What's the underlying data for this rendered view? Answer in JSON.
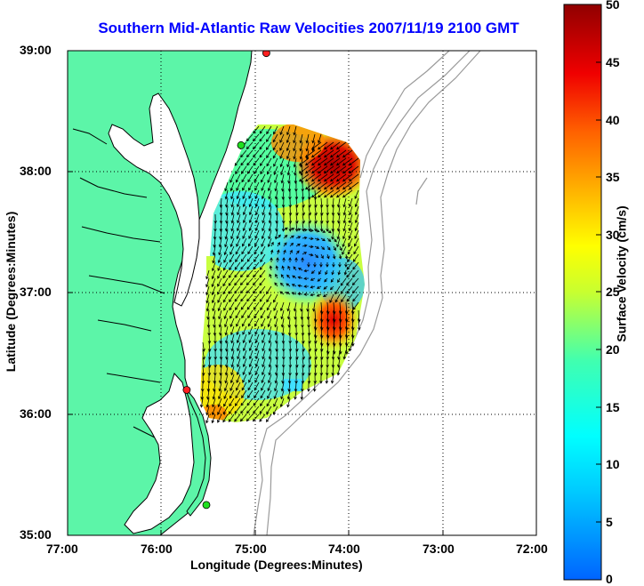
{
  "title": "Southern Mid-Atlantic Raw Velocities 2007/11/19 2100 GMT",
  "x_axis": {
    "label": "Longitude (Degrees:Minutes)",
    "ticks": [
      "77:00",
      "76:00",
      "75:00",
      "74:00",
      "73:00",
      "72:00"
    ]
  },
  "y_axis": {
    "label": "Latitude (Degrees:Minutes)",
    "ticks": [
      "39:00",
      "38:00",
      "37:00",
      "36:00",
      "35:00"
    ]
  },
  "colorbar": {
    "label": "Surface Velocity (cm/s)",
    "ticks": [
      "50",
      "45",
      "40",
      "35",
      "30",
      "25",
      "20",
      "15",
      "10",
      "5",
      "0"
    ],
    "range": [
      0,
      50
    ]
  },
  "colors": {
    "land": "#5cf5a8",
    "coast": "#000000",
    "bathymetry": "#9a9a9a",
    "title": "#0000ff",
    "station_red": "#ff2020",
    "station_green": "#20e020"
  },
  "map_extent": {
    "lon_west": -77.0,
    "lon_east": -72.0,
    "lat_south": 35.0,
    "lat_north": 39.0
  },
  "grid": true,
  "stations": [
    {
      "lon": -74.88,
      "lat": 38.98,
      "color": "red"
    },
    {
      "lon": -75.15,
      "lat": 38.22,
      "color": "green"
    },
    {
      "lon": -75.73,
      "lat": 36.2,
      "color": "red"
    },
    {
      "lon": -75.52,
      "lat": 35.25,
      "color": "green"
    }
  ]
}
